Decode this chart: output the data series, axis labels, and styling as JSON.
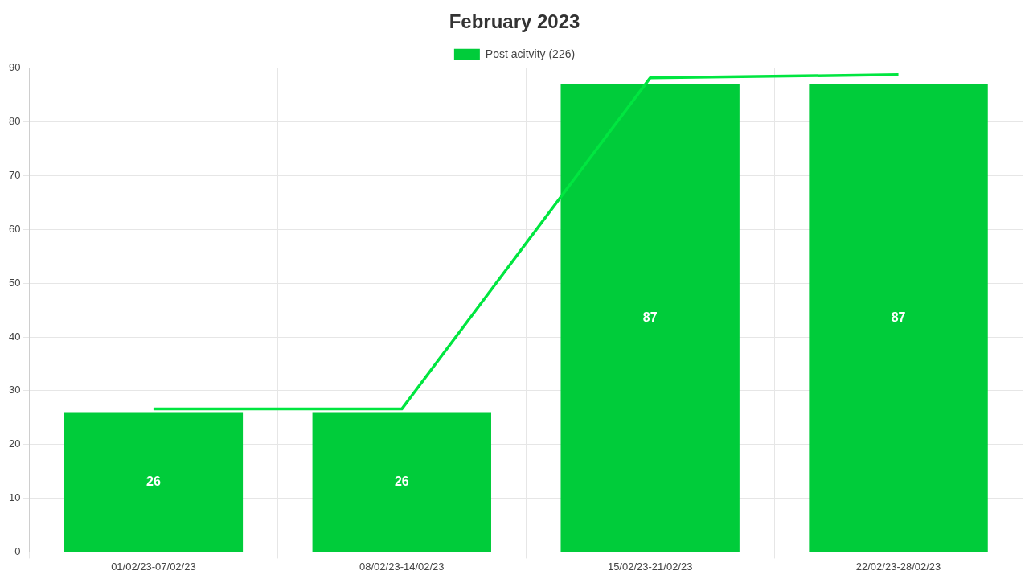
{
  "chart_data": {
    "type": "bar",
    "title": "February 2023",
    "categories": [
      "01/02/23-07/02/23",
      "08/02/23-14/02/23",
      "15/02/23-21/02/23",
      "22/02/23-28/02/23"
    ],
    "series": [
      {
        "name": "Post acitvity (226)",
        "color": "#00cc3a",
        "values": [
          26,
          26,
          87,
          87
        ],
        "value_labels": [
          "26",
          "26",
          "87",
          "87"
        ]
      },
      {
        "type": "line",
        "color": "#00e640",
        "values": [
          26.6,
          26.6,
          88.2,
          88.8
        ]
      }
    ],
    "ylim": [
      0,
      90
    ],
    "yticks": [
      0,
      10,
      20,
      30,
      40,
      50,
      60,
      70,
      80,
      90
    ],
    "grid": true,
    "legend": "top",
    "marker": "none",
    "line_style": "solid"
  }
}
